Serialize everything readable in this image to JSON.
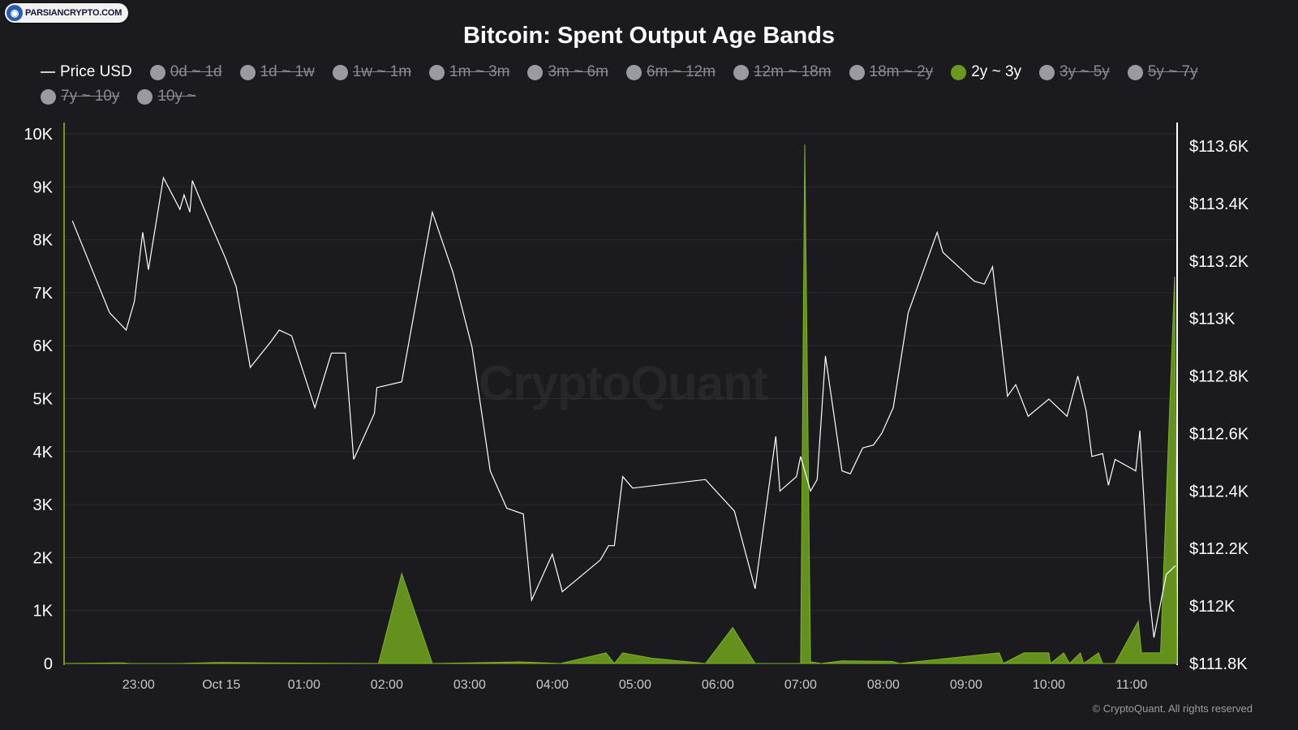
{
  "brand": {
    "name": "PARSIANCRYPTO.COM",
    "icon": "crypto-globe-icon"
  },
  "title": "Bitcoin: Spent Output Age Bands",
  "watermark": "CryptoQuant",
  "copyright": "© CryptoQuant. All rights reserved",
  "colors": {
    "background": "#1b1b1f",
    "band": "#6a9a1d",
    "price": "#ffffff",
    "grid": "#2c2c31"
  },
  "legend": [
    {
      "label": "Price USD",
      "state": "price"
    },
    {
      "label": "0d ~ 1d",
      "state": "off"
    },
    {
      "label": "1d ~ 1w",
      "state": "off"
    },
    {
      "label": "1w ~ 1m",
      "state": "off"
    },
    {
      "label": "1m ~ 3m",
      "state": "off"
    },
    {
      "label": "3m ~ 6m",
      "state": "off"
    },
    {
      "label": "6m ~ 12m",
      "state": "off"
    },
    {
      "label": "12m ~ 18m",
      "state": "off"
    },
    {
      "label": "18m ~ 2y",
      "state": "off"
    },
    {
      "label": "2y ~ 3y",
      "state": "on"
    },
    {
      "label": "3y ~ 5y",
      "state": "off"
    },
    {
      "label": "5y ~ 7y",
      "state": "off"
    },
    {
      "label": "7y ~ 10y",
      "state": "off"
    },
    {
      "label": "10y ~",
      "state": "off"
    }
  ],
  "chart_data": {
    "type": "area",
    "title": "Bitcoin: Spent Output Age Bands",
    "x_ticks": [
      {
        "t": 23.0,
        "label": "23:00"
      },
      {
        "t": 24.0,
        "label": "Oct 15"
      },
      {
        "t": 25.0,
        "label": "01:00"
      },
      {
        "t": 26.0,
        "label": "02:00"
      },
      {
        "t": 27.0,
        "label": "03:00"
      },
      {
        "t": 28.0,
        "label": "04:00"
      },
      {
        "t": 29.0,
        "label": "05:00"
      },
      {
        "t": 30.0,
        "label": "06:00"
      },
      {
        "t": 31.0,
        "label": "07:00"
      },
      {
        "t": 32.0,
        "label": "08:00"
      },
      {
        "t": 33.0,
        "label": "09:00"
      },
      {
        "t": 34.0,
        "label": "10:00"
      },
      {
        "t": 35.0,
        "label": "11:00"
      }
    ],
    "x_note": "x values are hours since Oct 14 00:00 (24 = Oct 15 00:00)",
    "xlim": [
      22.1,
      35.55
    ],
    "left_axis": {
      "ylim": [
        0,
        10000
      ],
      "ticks": [
        "0",
        "1K",
        "2K",
        "3K",
        "4K",
        "5K",
        "6K",
        "7K",
        "8K",
        "9K",
        "10K"
      ]
    },
    "right_axis": {
      "ylim": [
        111800,
        113620
      ],
      "ticks": [
        "$111.8K",
        "$112K",
        "$112.2K",
        "$112.4K",
        "$112.6K",
        "$112.8K",
        "$113K",
        "$113.2K",
        "$113.4K",
        "$113.6K"
      ]
    },
    "series": [
      {
        "name": "2y ~ 3y",
        "axis": "left",
        "style": "area",
        "points": [
          [
            22.1,
            0
          ],
          [
            22.8,
            10
          ],
          [
            22.9,
            0
          ],
          [
            23.5,
            0
          ],
          [
            24.0,
            20
          ],
          [
            24.5,
            10
          ],
          [
            25.9,
            0
          ],
          [
            26.18,
            1700
          ],
          [
            26.55,
            0
          ],
          [
            27.0,
            10
          ],
          [
            27.6,
            30
          ],
          [
            28.1,
            0
          ],
          [
            28.65,
            200
          ],
          [
            28.75,
            0
          ],
          [
            28.85,
            200
          ],
          [
            29.2,
            100
          ],
          [
            29.85,
            0
          ],
          [
            30.18,
            680
          ],
          [
            30.45,
            0
          ],
          [
            31.0,
            0
          ],
          [
            31.05,
            9800
          ],
          [
            31.12,
            30
          ],
          [
            31.25,
            0
          ],
          [
            31.5,
            50
          ],
          [
            32.1,
            40
          ],
          [
            32.2,
            0
          ],
          [
            33.4,
            200
          ],
          [
            33.45,
            0
          ],
          [
            33.7,
            200
          ],
          [
            34.0,
            200
          ],
          [
            34.02,
            0
          ],
          [
            34.18,
            200
          ],
          [
            34.25,
            0
          ],
          [
            34.38,
            200
          ],
          [
            34.42,
            0
          ],
          [
            34.6,
            200
          ],
          [
            34.65,
            0
          ],
          [
            34.8,
            0
          ],
          [
            35.08,
            800
          ],
          [
            35.12,
            200
          ],
          [
            35.35,
            200
          ],
          [
            35.52,
            7300
          ],
          [
            35.55,
            0
          ]
        ]
      },
      {
        "name": "Price USD",
        "axis": "right",
        "style": "line",
        "points": [
          [
            22.2,
            113340
          ],
          [
            22.65,
            113020
          ],
          [
            22.85,
            112960
          ],
          [
            22.95,
            113060
          ],
          [
            23.05,
            113300
          ],
          [
            23.12,
            113170
          ],
          [
            23.3,
            113490
          ],
          [
            23.5,
            113380
          ],
          [
            23.55,
            113430
          ],
          [
            23.62,
            113370
          ],
          [
            23.65,
            113480
          ],
          [
            23.75,
            113410
          ],
          [
            24.05,
            113210
          ],
          [
            24.18,
            113110
          ],
          [
            24.35,
            112830
          ],
          [
            24.6,
            112920
          ],
          [
            24.7,
            112960
          ],
          [
            24.85,
            112940
          ],
          [
            25.13,
            112690
          ],
          [
            25.33,
            112880
          ],
          [
            25.5,
            112880
          ],
          [
            25.6,
            112510
          ],
          [
            25.85,
            112670
          ],
          [
            25.88,
            112760
          ],
          [
            26.18,
            112780
          ],
          [
            26.55,
            113370
          ],
          [
            26.8,
            113160
          ],
          [
            27.03,
            112900
          ],
          [
            27.25,
            112470
          ],
          [
            27.45,
            112340
          ],
          [
            27.65,
            112320
          ],
          [
            27.75,
            112020
          ],
          [
            28.0,
            112180
          ],
          [
            28.12,
            112050
          ],
          [
            28.58,
            112160
          ],
          [
            28.68,
            112210
          ],
          [
            28.75,
            112210
          ],
          [
            28.85,
            112450
          ],
          [
            28.97,
            112410
          ],
          [
            29.85,
            112440
          ],
          [
            30.2,
            112330
          ],
          [
            30.45,
            112060
          ],
          [
            30.7,
            112590
          ],
          [
            30.75,
            112400
          ],
          [
            30.95,
            112450
          ],
          [
            31.0,
            112520
          ],
          [
            31.12,
            112400
          ],
          [
            31.2,
            112440
          ],
          [
            31.3,
            112870
          ],
          [
            31.5,
            112470
          ],
          [
            31.6,
            112460
          ],
          [
            31.75,
            112550
          ],
          [
            31.88,
            112560
          ],
          [
            31.98,
            112600
          ],
          [
            32.12,
            112690
          ],
          [
            32.3,
            113020
          ],
          [
            32.65,
            113300
          ],
          [
            32.72,
            113230
          ],
          [
            33.1,
            113130
          ],
          [
            33.22,
            113120
          ],
          [
            33.32,
            113180
          ],
          [
            33.5,
            112730
          ],
          [
            33.6,
            112770
          ],
          [
            33.75,
            112660
          ],
          [
            34.0,
            112720
          ],
          [
            34.22,
            112660
          ],
          [
            34.35,
            112800
          ],
          [
            34.45,
            112680
          ],
          [
            34.52,
            112520
          ],
          [
            34.65,
            112530
          ],
          [
            34.72,
            112420
          ],
          [
            34.8,
            112510
          ],
          [
            35.05,
            112470
          ],
          [
            35.1,
            112610
          ],
          [
            35.22,
            112020
          ],
          [
            35.27,
            111890
          ],
          [
            35.35,
            112010
          ],
          [
            35.42,
            112110
          ],
          [
            35.53,
            112140
          ]
        ]
      }
    ]
  }
}
